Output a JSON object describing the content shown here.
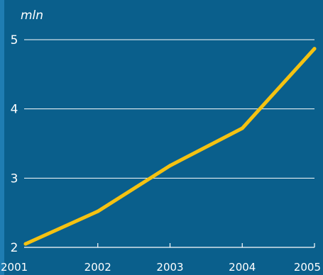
{
  "chart_data": {
    "type": "line",
    "title": "",
    "unit_label": "mln",
    "xlabel": "",
    "ylabel": "",
    "x": [
      "2001",
      "2002",
      "2003",
      "2004",
      "2005"
    ],
    "series": [
      {
        "values": [
          2.05,
          2.52,
          3.18,
          3.72,
          4.87
        ]
      }
    ],
    "yticks": [
      "2",
      "3",
      "4",
      "5"
    ],
    "ylim": [
      2,
      5
    ],
    "grid": "horizontal",
    "colors": {
      "background": "#0a5f8c",
      "line": "#f5c211",
      "grid": "#ffffff",
      "text": "#ffffff"
    }
  }
}
